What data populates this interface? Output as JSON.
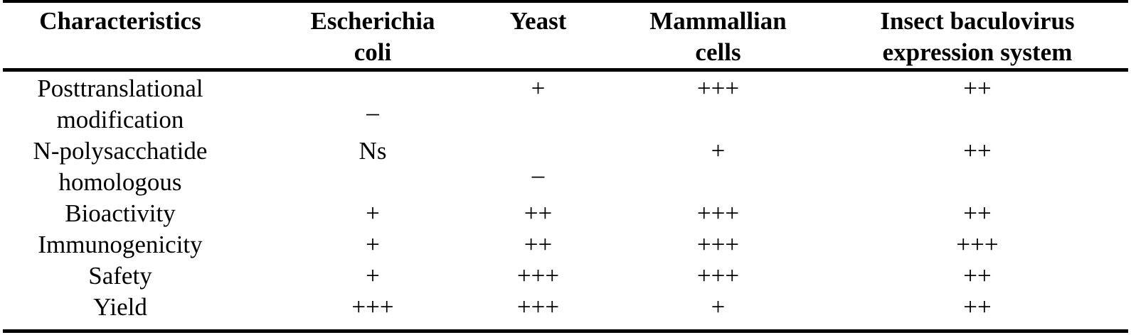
{
  "table": {
    "headers": [
      [
        "Characteristics"
      ],
      [
        "Escherichia",
        "coli"
      ],
      [
        "Yeast"
      ],
      [
        "Mammallian",
        "cells"
      ],
      [
        "Insect baculovirus",
        "expression system"
      ]
    ],
    "rows": [
      {
        "label": [
          "Posttranslational",
          "modification"
        ],
        "values": [
          "_",
          "+",
          "+++",
          "++"
        ]
      },
      {
        "label": [
          "N-polysacchatide",
          "homologous"
        ],
        "values": [
          "Ns",
          "_",
          "+",
          "++"
        ]
      },
      {
        "label": [
          "Bioactivity"
        ],
        "values": [
          "+",
          "++",
          "+++",
          "++"
        ]
      },
      {
        "label": [
          "Immunogenicity"
        ],
        "values": [
          "+",
          "++",
          "+++",
          "+++"
        ]
      },
      {
        "label": [
          "Safety"
        ],
        "values": [
          "+",
          "+++",
          "+++",
          "++"
        ]
      },
      {
        "label": [
          "Yield"
        ],
        "values": [
          "+++",
          "+++",
          "+",
          "++"
        ]
      }
    ]
  }
}
